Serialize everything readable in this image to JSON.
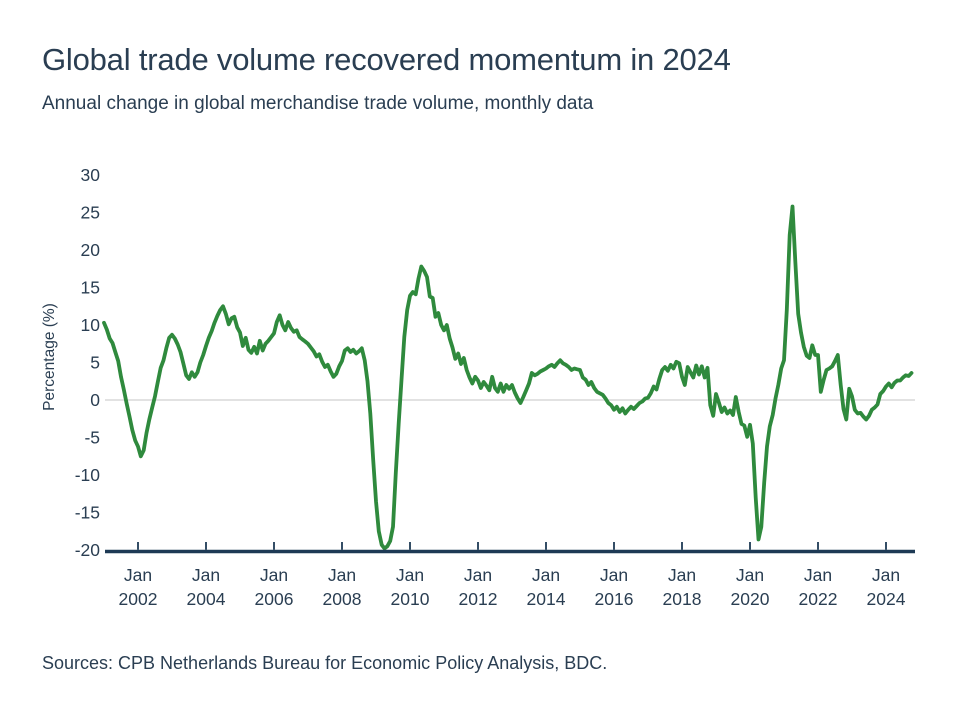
{
  "header": {
    "title": "Global trade volume recovered momentum in 2024",
    "subtitle": "Annual change in global merchandise trade volume, monthly data"
  },
  "footer": {
    "source": "Sources: CPB Netherlands Bureau for Economic Policy Analysis, BDC."
  },
  "chart_data": {
    "type": "line",
    "title": "Global trade volume recovered momentum in 2024",
    "subtitle": "Annual change in global merchandise trade volume, monthly data",
    "ylabel": "Percentage (%)",
    "xlabel": "",
    "ylim": [
      -20,
      30
    ],
    "y_ticks": [
      30,
      25,
      20,
      15,
      10,
      5,
      0,
      -5,
      -10,
      -15,
      -20
    ],
    "x_tick_month": "Jan",
    "x_tick_years": [
      2002,
      2004,
      2006,
      2008,
      2010,
      2012,
      2014,
      2016,
      2018,
      2020,
      2022,
      2024
    ],
    "frequency": "monthly",
    "start_month": "2001-01",
    "grid": "zero-line-only",
    "legend": "none",
    "line_color": "#2f8a3d",
    "axis_color": "#1e3a55",
    "zero_line_color": "#d9d9d9",
    "series": [
      {
        "name": "Annual change in global merchandise trade volume (%)",
        "values": [
          10.3,
          9.4,
          8.2,
          7.6,
          6.4,
          5.2,
          3.1,
          1.4,
          -0.5,
          -2.2,
          -4.0,
          -5.4,
          -6.2,
          -7.5,
          -6.7,
          -4.4,
          -2.6,
          -1.0,
          0.5,
          2.4,
          4.3,
          5.3,
          6.9,
          8.3,
          8.7,
          8.2,
          7.4,
          6.4,
          4.9,
          3.3,
          2.8,
          3.7,
          3.1,
          3.7,
          5.0,
          6.0,
          7.2,
          8.3,
          9.2,
          10.3,
          11.2,
          12.0,
          12.5,
          11.5,
          10.1,
          10.9,
          11.1,
          9.7,
          9.0,
          7.2,
          8.3,
          6.7,
          6.3,
          7.1,
          6.2,
          7.9,
          6.6,
          7.5,
          7.9,
          8.4,
          8.9,
          10.4,
          11.3,
          10.0,
          9.3,
          10.4,
          9.6,
          9.1,
          9.3,
          8.4,
          8.1,
          7.8,
          7.5,
          7.0,
          6.5,
          5.8,
          6.1,
          5.1,
          4.4,
          4.7,
          3.8,
          3.1,
          3.5,
          4.5,
          5.2,
          6.6,
          6.9,
          6.4,
          6.7,
          6.2,
          6.5,
          6.9,
          5.3,
          2.5,
          -1.8,
          -8.0,
          -13.5,
          -17.5,
          -19.3,
          -19.8,
          -19.5,
          -18.8,
          -16.9,
          -9.7,
          -3.1,
          2.7,
          8.4,
          12.0,
          13.9,
          14.4,
          14.1,
          16.2,
          17.8,
          17.2,
          16.4,
          13.8,
          13.6,
          11.1,
          11.6,
          10.0,
          9.3,
          10.0,
          8.2,
          7.0,
          5.5,
          6.2,
          4.8,
          5.6,
          4.0,
          3.0,
          2.2,
          3.1,
          2.6,
          1.6,
          2.4,
          1.9,
          1.3,
          3.1,
          1.6,
          1.1,
          2.2,
          1.1,
          2.0,
          1.5,
          2.0,
          1.0,
          0.2,
          -0.4,
          0.4,
          1.3,
          2.2,
          3.6,
          3.3,
          3.5,
          3.8,
          4.0,
          4.2,
          4.5,
          4.7,
          4.4,
          4.9,
          5.3,
          4.9,
          4.7,
          4.4,
          4.0,
          4.2,
          4.1,
          4.0,
          3.0,
          2.7,
          2.0,
          2.4,
          1.6,
          1.1,
          0.9,
          0.7,
          0.2,
          -0.4,
          -0.7,
          -1.3,
          -0.9,
          -1.6,
          -1.1,
          -1.8,
          -1.3,
          -0.9,
          -1.2,
          -0.8,
          -0.4,
          -0.2,
          0.2,
          0.3,
          0.9,
          1.8,
          1.4,
          2.8,
          4.0,
          4.4,
          3.9,
          4.7,
          4.2,
          5.1,
          4.9,
          3.1,
          2.0,
          4.4,
          3.7,
          3.0,
          4.6,
          3.4,
          4.5,
          3.0,
          4.3,
          -0.7,
          -2.1,
          0.8,
          -0.3,
          -1.6,
          -1.0,
          -1.8,
          -1.4,
          -2.0,
          0.4,
          -1.6,
          -3.2,
          -3.4,
          -4.9,
          -3.3,
          -5.8,
          -13.0,
          -18.6,
          -16.9,
          -11.0,
          -6.2,
          -3.5,
          -2.0,
          0.2,
          2.0,
          4.2,
          5.3,
          12.0,
          22.0,
          25.8,
          18.5,
          11.5,
          9.0,
          7.1,
          5.9,
          5.6,
          7.3,
          6.0,
          6.0,
          1.1,
          2.7,
          4.0,
          4.2,
          4.5,
          5.2,
          6.0,
          2.0,
          -1.2,
          -2.6,
          1.5,
          0.5,
          -1.3,
          -1.8,
          -1.7,
          -2.2,
          -2.6,
          -2.1,
          -1.3,
          -1.0,
          -0.6,
          0.8,
          1.2,
          1.8,
          2.2,
          1.7,
          2.3,
          2.6,
          2.6,
          3.0,
          3.3,
          3.2,
          3.6
        ]
      }
    ]
  }
}
